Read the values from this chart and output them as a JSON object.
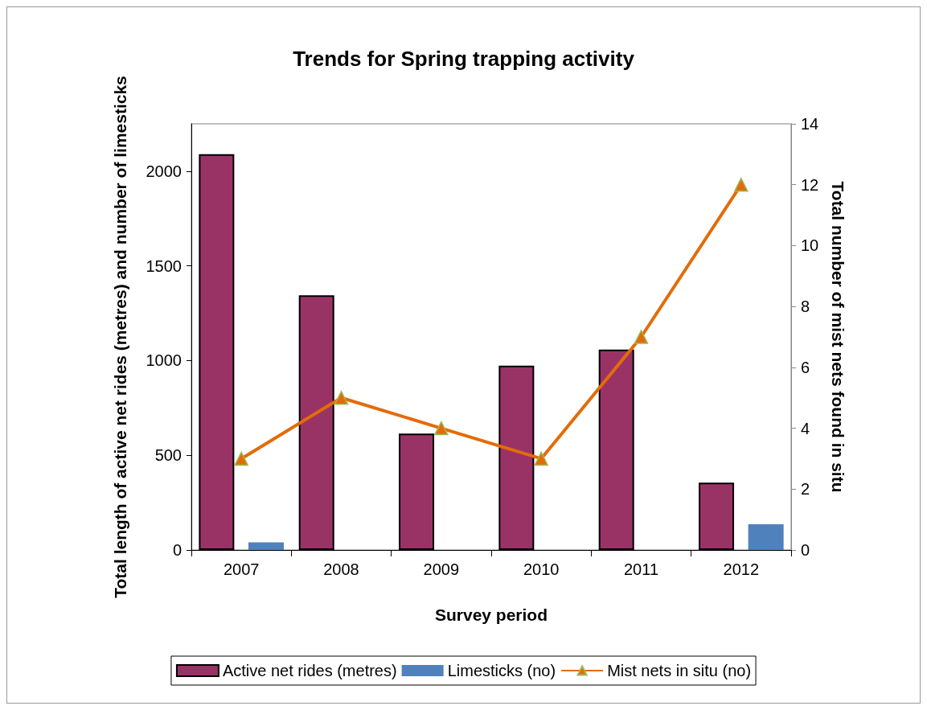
{
  "chart_data": {
    "type": "bar",
    "title": "Trends for Spring trapping activity",
    "xlabel": "Survey period",
    "ylabel": "Total length of active net rides (metres) and number of limesticks",
    "y2label": "Total number of mist nets found in situ",
    "categories": [
      "2007",
      "2008",
      "2009",
      "2010",
      "2011",
      "2012"
    ],
    "series": [
      {
        "name": "Active net rides (metres)",
        "color": "#993366",
        "values": [
          2090,
          1345,
          614,
          973,
          1058,
          356
        ]
      },
      {
        "name": "Limesticks (no)",
        "color": "#4f81bd",
        "values": [
          40,
          0,
          0,
          0,
          0,
          136
        ]
      },
      {
        "name": "Mist nets in situ (no)",
        "type": "line",
        "axis": "y2",
        "color": "#e36c09",
        "marker": "triangle",
        "values": [
          3,
          5,
          4,
          3,
          7,
          12
        ]
      }
    ],
    "ylim": [
      0,
      2250
    ],
    "yticks": [
      0,
      500,
      1000,
      1500,
      2000
    ],
    "y2lim": [
      0,
      14
    ],
    "y2ticks": [
      0,
      2,
      4,
      6,
      8,
      10,
      12,
      14
    ],
    "grid": false,
    "legend": "bottom"
  }
}
